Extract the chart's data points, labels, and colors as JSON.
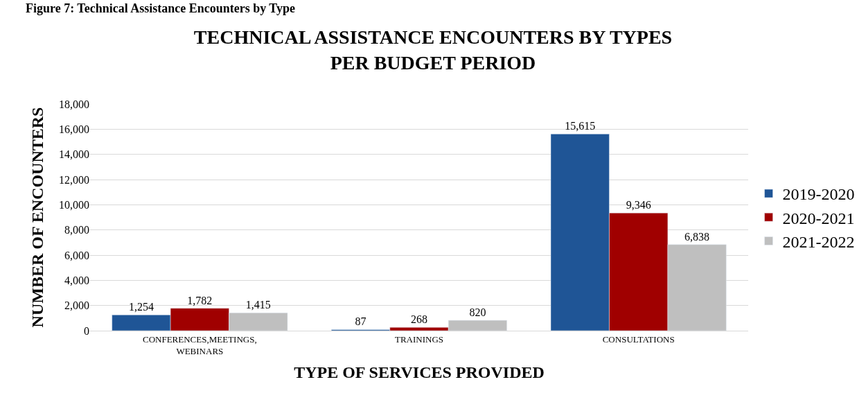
{
  "chart_data": {
    "type": "bar",
    "title": "TECHNICAL ASSISTANCE ENCOUNTERS BY TYPES\nPER BUDGET PERIOD",
    "annotations": [
      "Figure 7: Technical Assistance Encounters by Type"
    ],
    "xlabel": "TYPE OF SERVICES PROVIDED",
    "ylabel": "NUMBER OF ENCOUNTERS",
    "categories": [
      "CONFERENCES,MEETINGS, WEBINARS",
      "TRAININGS",
      "CONSULTATIONS"
    ],
    "series": [
      {
        "name": "2019-2020",
        "color": "#1f5596",
        "values": [
          1254,
          87,
          15615
        ],
        "value_labels": [
          "1,254",
          "87",
          "15,615"
        ]
      },
      {
        "name": "2020-2021",
        "color": "#a00000",
        "values": [
          1782,
          268,
          9346
        ],
        "value_labels": [
          "1,782",
          "268",
          "9,346"
        ]
      },
      {
        "name": "2021-2022",
        "color": "#bfbfbf",
        "values": [
          1415,
          820,
          6838
        ],
        "value_labels": [
          "1,415",
          "820",
          "6,838"
        ]
      }
    ],
    "ylim": [
      0,
      18000
    ],
    "yticks": [
      {
        "value": 0,
        "label": "0"
      },
      {
        "value": 2000,
        "label": "2,000"
      },
      {
        "value": 4000,
        "label": "4,000"
      },
      {
        "value": 6000,
        "label": "6,000"
      },
      {
        "value": 8000,
        "label": "8,000"
      },
      {
        "value": 10000,
        "label": "10,000"
      },
      {
        "value": 12000,
        "label": "12,000"
      },
      {
        "value": 14000,
        "label": "14,000"
      },
      {
        "value": 16000,
        "label": "16,000"
      },
      {
        "value": 18000,
        "label": "18,000"
      }
    ],
    "grid": "y",
    "legend": "right"
  }
}
